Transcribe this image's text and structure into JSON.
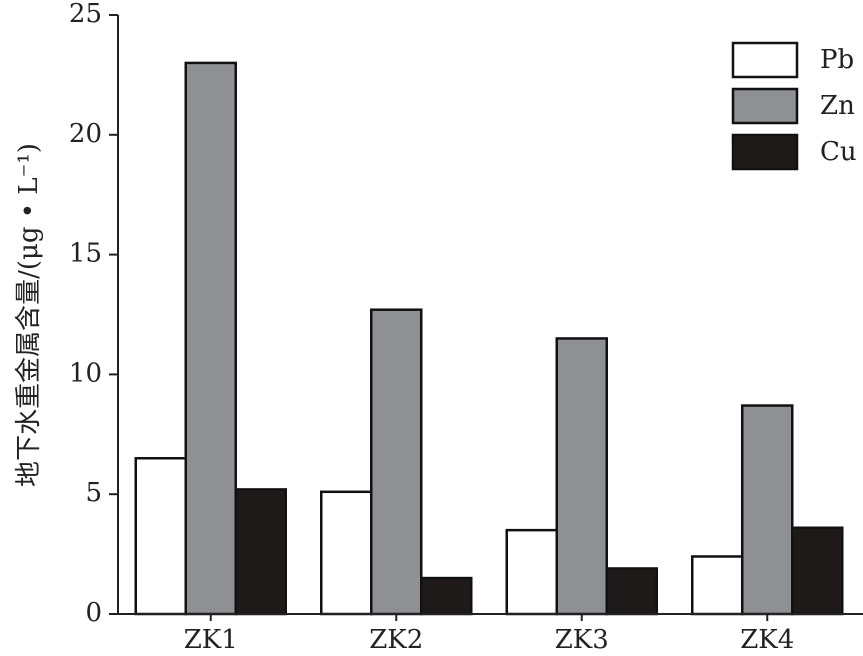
{
  "chart_data": {
    "type": "bar",
    "y_label": "地下水重金属含量/(μg • L⁻¹)",
    "categories": [
      "ZK1",
      "ZK2",
      "ZK3",
      "ZK4"
    ],
    "series": [
      {
        "name": "Pb",
        "color": "#ffffff",
        "values": [
          6.5,
          5.1,
          3.5,
          2.4
        ]
      },
      {
        "name": "Zn",
        "color": "#8f9093",
        "values": [
          23.0,
          12.7,
          11.5,
          8.7
        ]
      },
      {
        "name": "Cu",
        "color": "#1f1a1a",
        "values": [
          5.2,
          1.5,
          1.9,
          3.6
        ]
      }
    ],
    "ylim": [
      0,
      25
    ],
    "yticks": [
      0,
      5,
      10,
      15,
      20,
      25
    ],
    "legend": "upper right"
  }
}
